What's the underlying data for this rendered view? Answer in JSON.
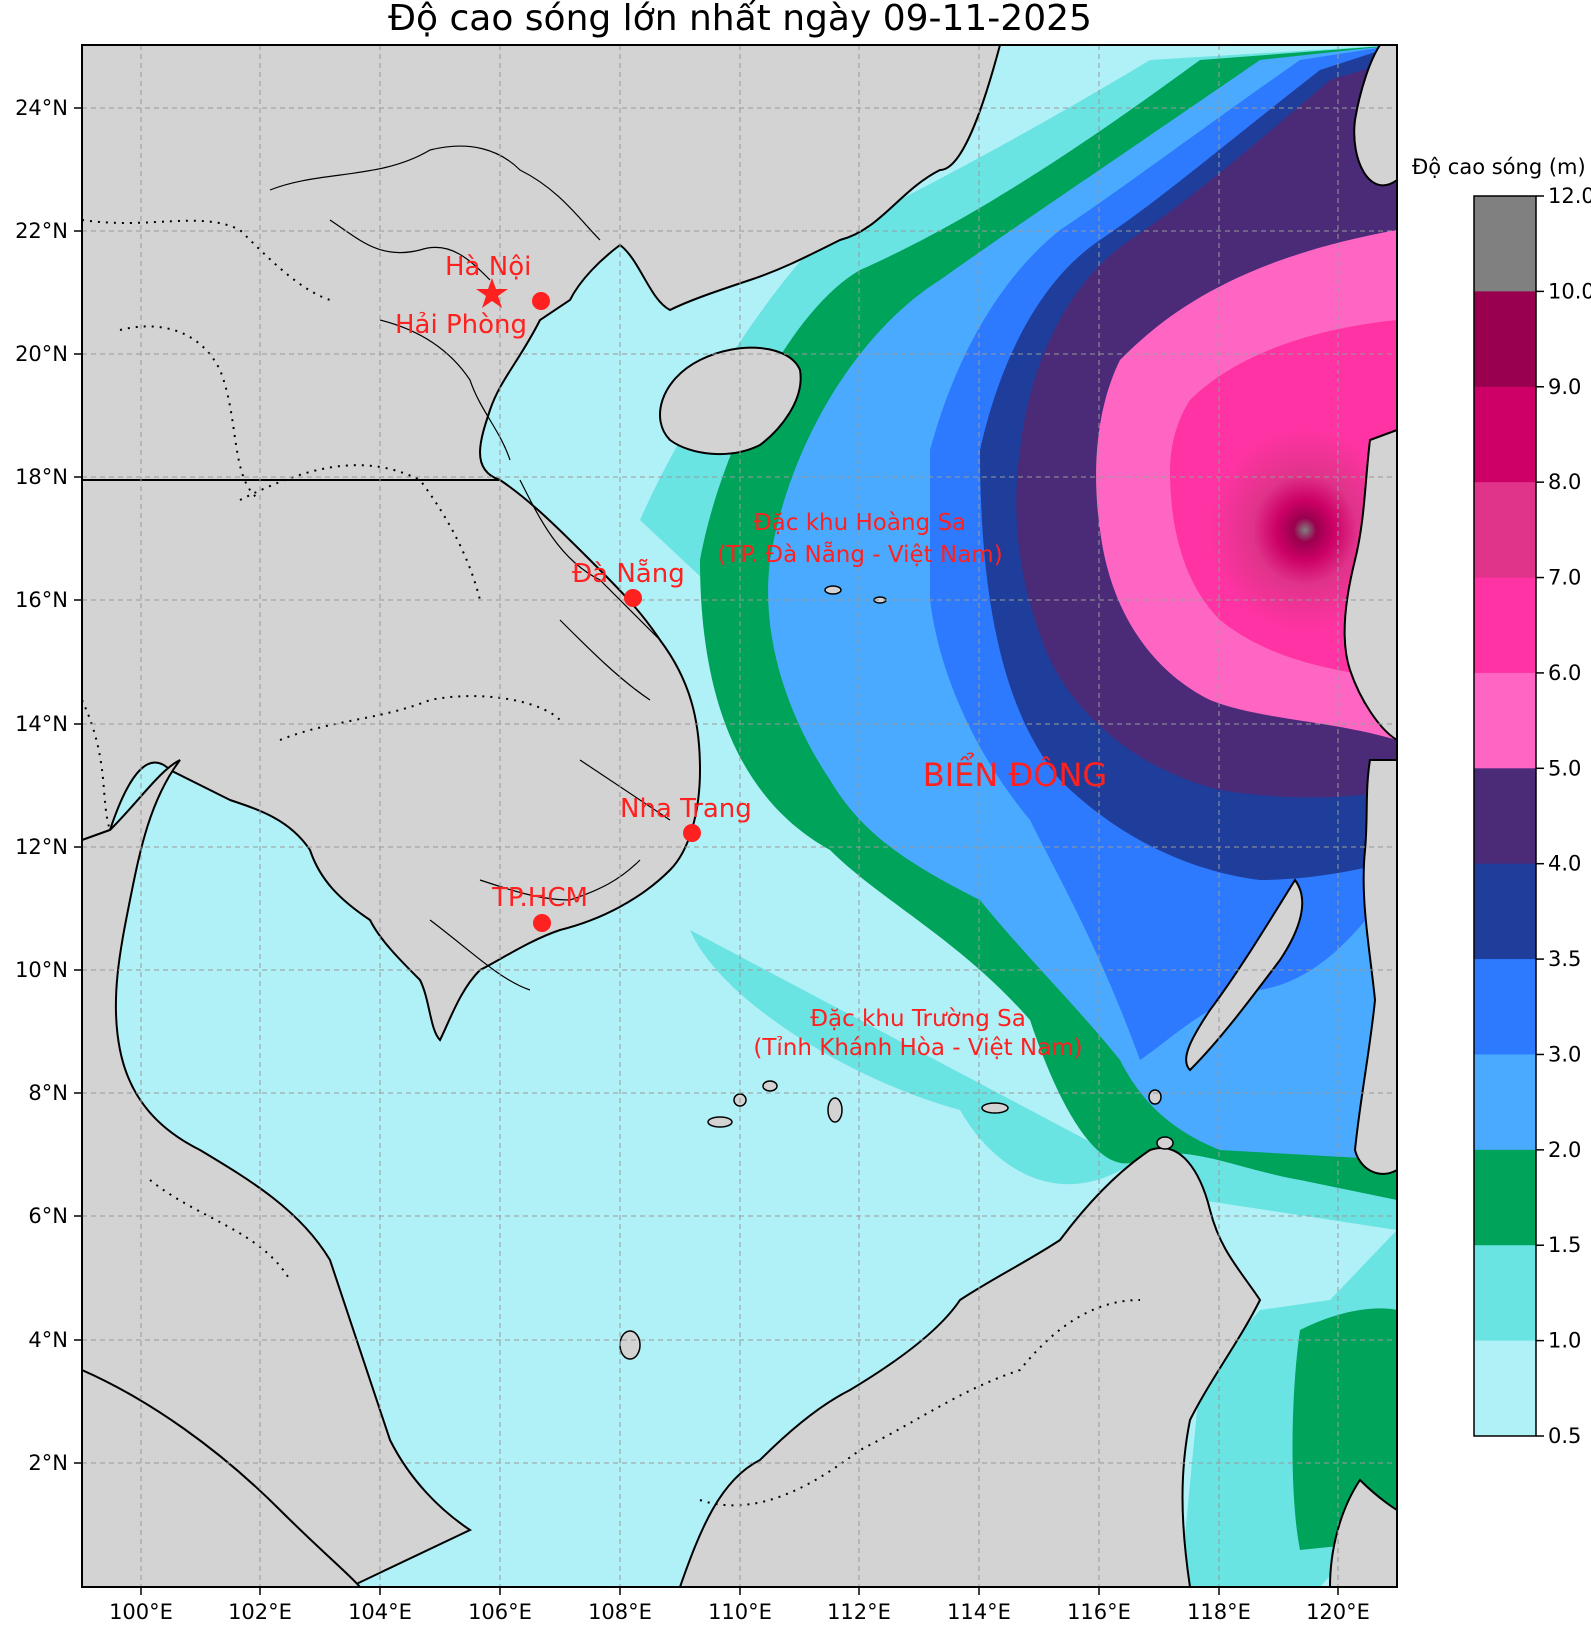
{
  "title": "Độ cao sóng lớn nhất ngày 09-11-2025",
  "lon_ticks": [
    "100°E",
    "102°E",
    "104°E",
    "106°E",
    "108°E",
    "110°E",
    "112°E",
    "114°E",
    "116°E",
    "118°E",
    "120°E"
  ],
  "lat_ticks": [
    "24°N",
    "22°N",
    "20°N",
    "18°N",
    "16°N",
    "14°N",
    "12°N",
    "10°N",
    "8°N",
    "6°N",
    "4°N",
    "2°N"
  ],
  "places": {
    "ha_noi": "Hà Nội",
    "hai_phong": "Hải Phòng",
    "da_nang": "Đà Nẵng",
    "nha_trang": "Nha Trang",
    "tp_hcm": "TP.HCM",
    "hoang_sa_1": "Đặc khu Hoàng Sa",
    "hoang_sa_2": "(TP. Đà Nẵng - Việt Nam)",
    "truong_sa_1": "Đặc khu Trường Sa",
    "truong_sa_2": "(Tỉnh Khánh Hòa - Việt Nam)",
    "bien_dong": "BIỂN ĐÔNG"
  },
  "colorbar": {
    "label": "Độ cao sóng (m)",
    "ticks": [
      "12.0",
      "10.0",
      "9.0",
      "8.0",
      "7.0",
      "6.0",
      "5.0",
      "4.0",
      "3.5",
      "3.0",
      "2.0",
      "1.5",
      "1.0",
      "0.5"
    ],
    "colors": [
      "#808080",
      "#99004d",
      "#cc0066",
      "#e0338a",
      "#ff33a3",
      "#ff66c4",
      "#4b2a78",
      "#1f3e9c",
      "#2e7aff",
      "#4aaaff",
      "#00a35a",
      "#6ae3e3",
      "#b0f0f7"
    ]
  },
  "chart_data": {
    "type": "heatmap",
    "title": "Độ cao sóng lớn nhất ngày 09-11-2025",
    "xlabel": "",
    "ylabel": "",
    "xlim": [
      "99°E",
      "121°E"
    ],
    "ylim": [
      "0°N",
      "25°N"
    ],
    "colorbar_label": "Độ cao sóng (m)",
    "levels": [
      0.5,
      1.0,
      1.5,
      2.0,
      3.0,
      3.5,
      4.0,
      5.0,
      6.0,
      7.0,
      8.0,
      9.0,
      10.0,
      12.0
    ],
    "max_region": "19-20°N, 117-121°E (≥ 10 m core near 17°N 119.5°E)",
    "markers": [
      {
        "name": "Hà Nội",
        "lon": 105.85,
        "lat": 21.03,
        "symbol": "star"
      },
      {
        "name": "Hải Phòng",
        "lon": 106.68,
        "lat": 20.86,
        "symbol": "dot"
      },
      {
        "name": "Đà Nẵng",
        "lon": 108.22,
        "lat": 16.05,
        "symbol": "dot"
      },
      {
        "name": "Nha Trang",
        "lon": 109.2,
        "lat": 12.24,
        "symbol": "dot"
      },
      {
        "name": "TP.HCM",
        "lon": 106.7,
        "lat": 10.78,
        "symbol": "dot"
      }
    ]
  }
}
